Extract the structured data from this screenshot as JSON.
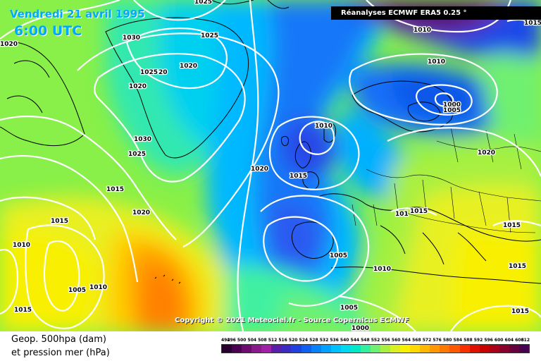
{
  "header": {
    "date": "Vendredi 21 avril 1995",
    "time": "6:00 UTC",
    "source": "Réanalyses ECMWF ERA5 0.25 °"
  },
  "copyright": "Copyright © 2021 Meteociel.fr - Source Copernicus ECMWF",
  "legend": {
    "line1": "Geop. 500hpa (dam)",
    "line2": "et pression mer (hPa)",
    "scale_labels": [
      "492",
      "496",
      "500",
      "504",
      "508",
      "512",
      "516",
      "520",
      "524",
      "528",
      "532",
      "536",
      "540",
      "544",
      "548",
      "552",
      "556",
      "560",
      "564",
      "568",
      "572",
      "576",
      "580",
      "584",
      "588",
      "592",
      "596",
      "600",
      "604",
      "608",
      "612"
    ],
    "scale_colors": [
      "#2a0030",
      "#4c0050",
      "#6d0b6e",
      "#8a1a8c",
      "#a020a8",
      "#5a1fa8",
      "#3a2cc0",
      "#2040e0",
      "#1060f0",
      "#0a80f8",
      "#00a0ff",
      "#00c0ff",
      "#00d8f0",
      "#00e8c8",
      "#30f0a0",
      "#70f070",
      "#a8f040",
      "#d8f020",
      "#f8f000",
      "#ffd800",
      "#ffb800",
      "#ff9800",
      "#ff7800",
      "#ff5800",
      "#f83000",
      "#e01000",
      "#c80000",
      "#a80018",
      "#88002c",
      "#680040",
      "#480050"
    ]
  },
  "isobar_labels": [
    {
      "text": "1025",
      "id": "iso-1025-top"
    },
    {
      "text": "1020",
      "id": "iso-1020-nw"
    },
    {
      "text": "1030",
      "id": "iso-1030-greenland"
    },
    {
      "text": "1025",
      "id": "iso-1025-greenland"
    },
    {
      "text": "1020",
      "id": "iso-1020-greenland-e"
    },
    {
      "text": "1025",
      "id": "iso-1025-greenland-s"
    },
    {
      "text": "20",
      "id": "iso-20-greenland-s"
    },
    {
      "text": "1020",
      "id": "iso-1020-greenland-sw"
    },
    {
      "text": "1030",
      "id": "iso-1030-atlantic"
    },
    {
      "text": "1025",
      "id": "iso-1025-atlantic"
    },
    {
      "text": "1015",
      "id": "iso-1015-atlantic-w"
    },
    {
      "text": "1015",
      "id": "iso-1015-west"
    },
    {
      "text": "1020",
      "id": "iso-1020-atlantic"
    },
    {
      "text": "1010",
      "id": "iso-1010-west"
    },
    {
      "text": "1005",
      "id": "iso-1005-sw-low"
    },
    {
      "text": "1010",
      "id": "iso-1010-sw-low"
    },
    {
      "text": "1015",
      "id": "iso-1015-sw"
    },
    {
      "text": "1020",
      "id": "iso-1020-mid"
    },
    {
      "text": "1010",
      "id": "iso-1010-uk-low"
    },
    {
      "text": "1015",
      "id": "iso-1015-uk"
    },
    {
      "text": "1005",
      "id": "iso-1005-iberia"
    },
    {
      "text": "1010",
      "id": "iso-1010-med"
    },
    {
      "text": "1005",
      "id": "iso-1005-africa"
    },
    {
      "text": "1000",
      "id": "iso-1000-africa"
    },
    {
      "text": "1010",
      "id": "iso-1010-north"
    },
    {
      "text": "1010",
      "id": "iso-1010-arctic"
    },
    {
      "text": "1015",
      "id": "iso-1015-ne-edge"
    },
    {
      "text": "1000",
      "id": "iso-1000-scandinavia"
    },
    {
      "text": "1005",
      "id": "iso-1005-scandinavia"
    },
    {
      "text": "1020",
      "id": "iso-1020-russia"
    },
    {
      "text": "1015",
      "id": "iso-1015-alps"
    },
    {
      "text": "1015",
      "id": "iso-1015-balkans"
    },
    {
      "text": "1015",
      "id": "iso-1015-east"
    },
    {
      "text": "1015",
      "id": "iso-1015-se"
    },
    {
      "text": "101",
      "id": "iso-101-alps"
    }
  ]
}
